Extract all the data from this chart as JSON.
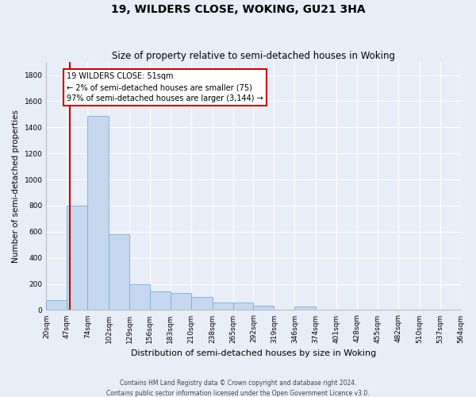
{
  "title": "19, WILDERS CLOSE, WOKING, GU21 3HA",
  "subtitle": "Size of property relative to semi-detached houses in Woking",
  "xlabel": "Distribution of semi-detached houses by size in Woking",
  "ylabel": "Number of semi-detached properties",
  "footer_line1": "Contains HM Land Registry data © Crown copyright and database right 2024.",
  "footer_line2": "Contains public sector information licensed under the Open Government Licence v3.0.",
  "annotation_line1": "19 WILDERS CLOSE: 51sqm",
  "annotation_line2": "← 2% of semi-detached houses are smaller (75)",
  "annotation_line3": "97% of semi-detached houses are larger (3,144) →",
  "property_size": 51,
  "bar_color": "#c5d8f0",
  "bar_edge_color": "#7aadd4",
  "red_line_color": "#cc0000",
  "annotation_box_edge_color": "#cc0000",
  "background_color": "#e8eef8",
  "grid_color": "#ffffff",
  "ylim": [
    0,
    1900
  ],
  "yticks": [
    0,
    200,
    400,
    600,
    800,
    1000,
    1200,
    1400,
    1600,
    1800
  ],
  "bin_edges": [
    20,
    47,
    74,
    102,
    129,
    156,
    183,
    210,
    238,
    265,
    292,
    319,
    346,
    374,
    401,
    428,
    455,
    482,
    510,
    537,
    564
  ],
  "bin_labels": [
    "20sqm",
    "47sqm",
    "74sqm",
    "102sqm",
    "129sqm",
    "156sqm",
    "183sqm",
    "210sqm",
    "238sqm",
    "265sqm",
    "292sqm",
    "319sqm",
    "346sqm",
    "374sqm",
    "401sqm",
    "428sqm",
    "455sqm",
    "482sqm",
    "510sqm",
    "537sqm",
    "564sqm"
  ],
  "bar_heights": [
    75,
    800,
    1490,
    580,
    195,
    145,
    130,
    100,
    60,
    55,
    35,
    0,
    30,
    0,
    0,
    0,
    0,
    0,
    0,
    0
  ],
  "title_fontsize": 10,
  "subtitle_fontsize": 8.5,
  "xlabel_fontsize": 8,
  "ylabel_fontsize": 7.5,
  "tick_fontsize": 6.5,
  "footer_fontsize": 5.5,
  "annotation_fontsize": 7
}
